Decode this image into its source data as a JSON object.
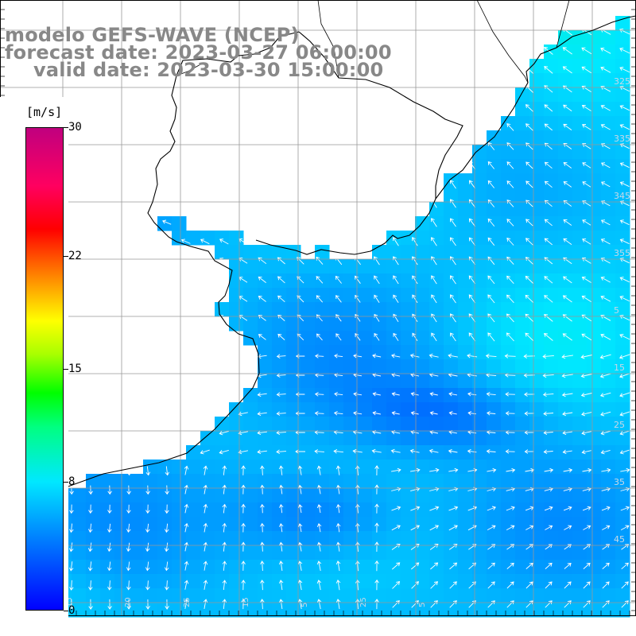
{
  "title": {
    "line1": "modelo GEFS-WAVE (NCEP)",
    "line2": "forecast date: 2023-03-27 06:00:00",
    "line3": "valid date: 2023-03-30 15:00:00"
  },
  "colorbar": {
    "unit": "[m/s]",
    "ticks": [
      "30",
      "22",
      "15",
      "8",
      "0"
    ],
    "tick_values": [
      30,
      22,
      15,
      8,
      0
    ],
    "min": 0,
    "max": 30
  },
  "map": {
    "variable": "wind speed and direction",
    "colormap": [
      "#0000ff",
      "#0070ff",
      "#00e8ff",
      "#00ff80",
      "#00ff00",
      "#ffff00",
      "#ff0000",
      "#c0007f"
    ],
    "land_color": "#ffffff",
    "coastline_color": "#000000",
    "grid_color": "#999999",
    "vector_color": "#ffffff",
    "right_edge_labels": [
      "325",
      "335",
      "345",
      "355",
      "5",
      "15",
      "25",
      "35",
      "45"
    ],
    "bottom_edge_labels": [
      "15",
      "20",
      "25",
      "15",
      "5",
      "25",
      "5"
    ]
  }
}
